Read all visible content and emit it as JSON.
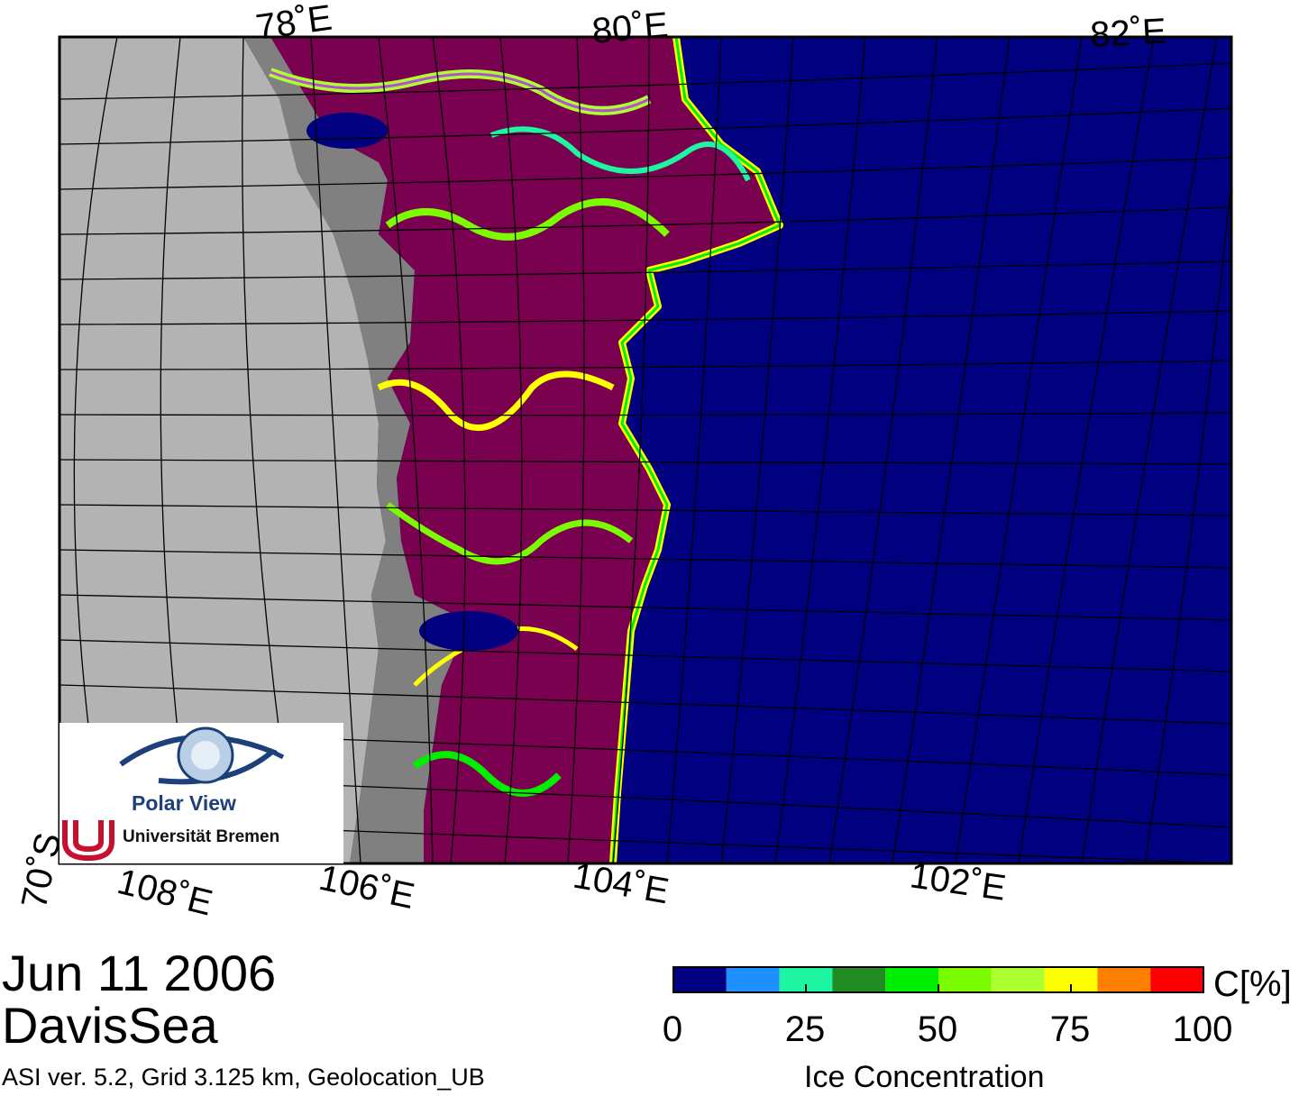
{
  "map": {
    "lon_labels_top": [
      "78˚E",
      "80˚E",
      "82˚E"
    ],
    "lon_labels_bottom": [
      "108˚E",
      "106˚E",
      "104˚E",
      "102˚E"
    ],
    "lat_label": "70˚S",
    "colors": {
      "land": "#b3b3b3",
      "shelf_ice": "#808080",
      "open_water": "#000080",
      "pack_ice": "#7a0050"
    }
  },
  "logo": {
    "title": "Polar View",
    "institution": "Universität Bremen"
  },
  "caption": {
    "date": "Jun 11 2006",
    "region": "DavisSea",
    "info": "ASI ver. 5.2,  Grid 3.125 km, Geolocation_UB"
  },
  "colorbar": {
    "title": "Ice Concentration",
    "unit": "C[%]",
    "ticks": [
      "0",
      "25",
      "50",
      "75",
      "100"
    ],
    "colors": [
      "#000080",
      "#1e90ff",
      "#1ef5a0",
      "#228b22",
      "#00ee00",
      "#7cfc00",
      "#adff2f",
      "#ffff00",
      "#ff8000",
      "#ff0000",
      "#b450d2",
      "#9400d3",
      "#e8d8f0"
    ]
  }
}
